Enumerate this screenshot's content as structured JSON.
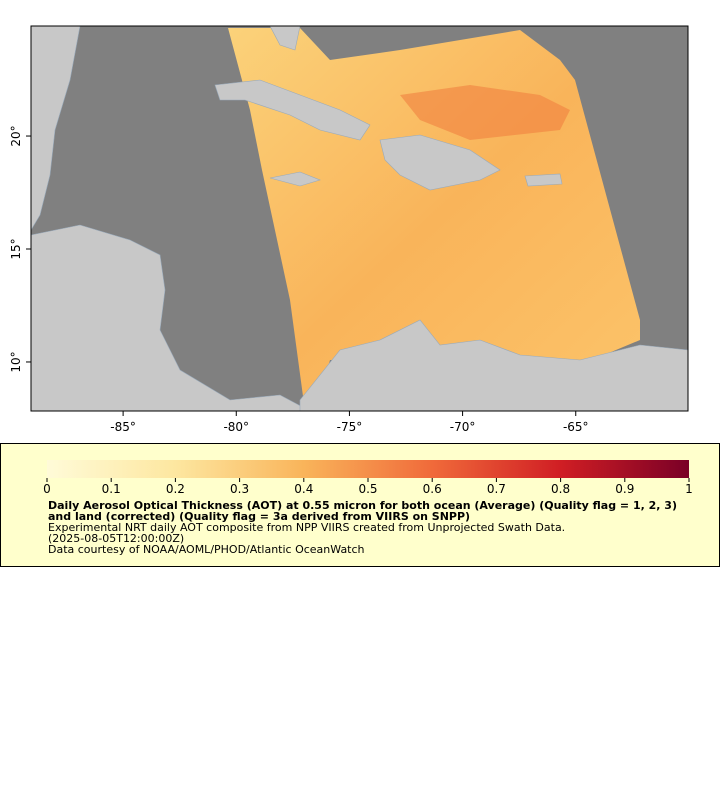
{
  "map": {
    "xlim": [
      -89.07,
      -60.04
    ],
    "ylim": [
      7.83,
      24.87
    ],
    "xticks": [
      {
        "value": -85,
        "label": "-85°"
      },
      {
        "value": -80,
        "label": "-80°"
      },
      {
        "value": -75,
        "label": "-75°"
      },
      {
        "value": -70,
        "label": "-70°"
      },
      {
        "value": -65,
        "label": "-65°"
      }
    ],
    "yticks": [
      {
        "value": 10,
        "label": "10°"
      },
      {
        "value": 15,
        "label": "15°"
      },
      {
        "value": 20,
        "label": "20°"
      }
    ]
  },
  "colorbar": {
    "lim": [
      0,
      1
    ],
    "ticks": [
      0,
      0.1,
      0.2,
      0.3,
      0.4,
      0.5,
      0.6,
      0.7,
      0.8,
      0.9,
      1
    ]
  },
  "legend": {
    "title": "Daily Aerosol Optical Thickness (AOT) at 0.55 micron for both ocean (Average) (Quality flag = 1, 2, 3) and land (corrected) (Quality flag = 3a derived from VIIRS on SNPP)",
    "lines": [
      "Experimental NRT daily AOT composite from NPP VIIRS created from Unprojected Swath Data.",
      "(2025-08-05T12:00:00Z)",
      "Data courtesy of NOAA/AOML/PHOD/Atlantic OceanWatch"
    ]
  }
}
